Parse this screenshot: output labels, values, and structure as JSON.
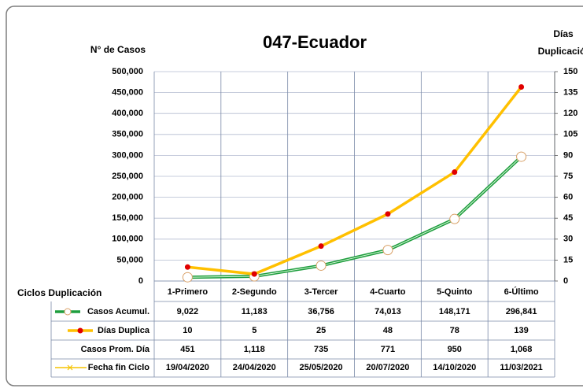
{
  "chart_data": {
    "type": "line",
    "title": "047-Ecuador",
    "ylabel": "N° de Casos",
    "y2label": "Días Duplicación",
    "xlabel": "Ciclos Duplicación",
    "categories": [
      "1-Primero",
      "2-Segundo",
      "3-Tercer",
      "4-Cuarto",
      "5-Quinto",
      "6-Último"
    ],
    "ylim": [
      0,
      500000
    ],
    "yticks": [
      {
        "value": 0,
        "label": "0"
      },
      {
        "value": 50000,
        "label": "50,000"
      },
      {
        "value": 100000,
        "label": "100,000"
      },
      {
        "value": 150000,
        "label": "150,000"
      },
      {
        "value": 200000,
        "label": "200,000"
      },
      {
        "value": 250000,
        "label": "250,000"
      },
      {
        "value": 300000,
        "label": "300,000"
      },
      {
        "value": 350000,
        "label": "350,000"
      },
      {
        "value": 400000,
        "label": "400,000"
      },
      {
        "value": 450000,
        "label": "450,000"
      },
      {
        "value": 500000,
        "label": "500,000"
      }
    ],
    "y2lim": [
      0,
      150
    ],
    "y2ticks": [
      0,
      15,
      30,
      45,
      60,
      75,
      90,
      105,
      120,
      135,
      150
    ],
    "grid": true,
    "series": [
      {
        "name": "Casos Acumul.",
        "color": "#1e9e3e",
        "values": [
          9022,
          11183,
          36756,
          74013,
          148171,
          296841
        ],
        "value_labels": [
          "9,022",
          "11,183",
          "36,756",
          "74,013",
          "148,171",
          "296,841"
        ]
      },
      {
        "name": "Días Duplica",
        "color": "#ffc000",
        "axis": "y2",
        "values": [
          10,
          5,
          25,
          48,
          78,
          139
        ]
      }
    ],
    "table_rows": [
      {
        "name": "Casos Prom. Día",
        "values": [
          451,
          1118,
          735,
          771,
          950,
          1068
        ],
        "value_labels": [
          "451",
          "1,118",
          "735",
          "771",
          "950",
          "1,068"
        ]
      },
      {
        "name": "Fecha fin Ciclo",
        "color": "#f5c400",
        "values": [
          "19/04/2020",
          "24/04/2020",
          "25/05/2020",
          "20/07/2020",
          "14/10/2020",
          "11/03/2021"
        ]
      }
    ]
  }
}
